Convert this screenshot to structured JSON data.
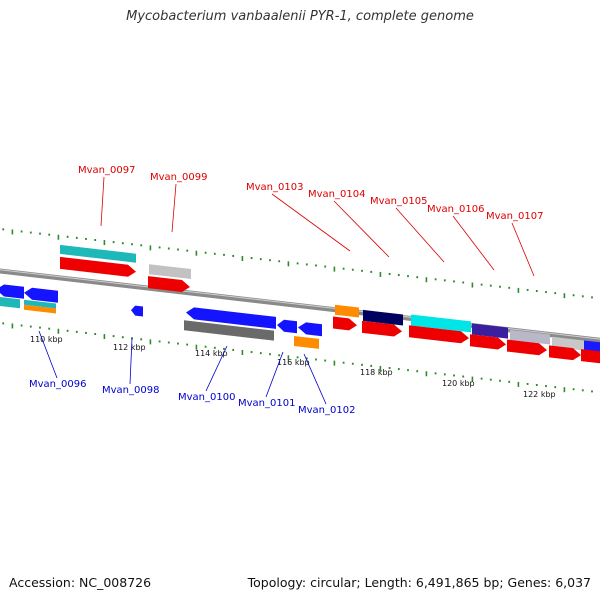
{
  "title": "Mycobacterium vanbaalenii PYR-1, complete genome",
  "footer": {
    "accession": "Accession: NC_008726",
    "summary": "Topology: circular; Length: 6,491,865 bp; Genes: 6,037"
  },
  "colors": {
    "backbone": "#8a8a8a",
    "forward_label": "#dd0000",
    "reverse_label": "#0000cc",
    "ticks": "#2d8a2d",
    "cds": "#ee0000"
  },
  "kbp_ticks": [
    "110 kbp",
    "112 kbp",
    "114 kbp",
    "116 kbp",
    "118 kbp",
    "120 kbp",
    "122 kbp"
  ],
  "forward_genes": [
    "Mvan_0097",
    "Mvan_0099",
    "Mvan_0103",
    "Mvan_0104",
    "Mvan_0105",
    "Mvan_0106",
    "Mvan_0107"
  ],
  "reverse_genes": [
    "Mvan_0096",
    "Mvan_0098",
    "Mvan_0100",
    "Mvan_0101",
    "Mvan_0102"
  ]
}
